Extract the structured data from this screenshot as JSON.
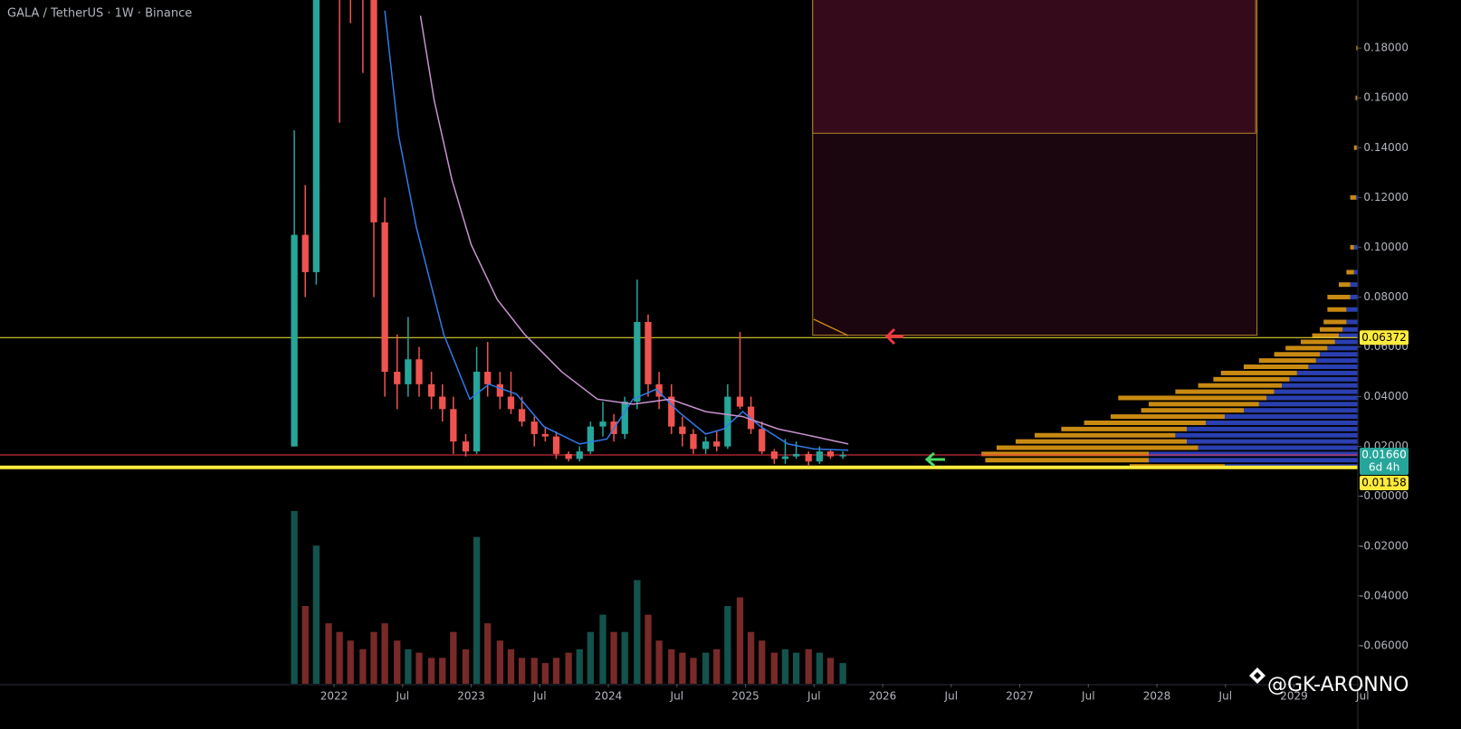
{
  "chart_data": {
    "type": "candlestick",
    "title": "GALA / TetherUS · 1W · Binance",
    "watermark": "@GK-ARONNO",
    "xlim": [
      2019.564,
      2029.465
    ],
    "ylim": [
      -0.0753,
      0.1993
    ],
    "xticks": [
      2022,
      {
        "value": 2022.5,
        "label": "Jul"
      },
      2023,
      {
        "value": 2023.5,
        "label": "Jul"
      },
      2024,
      {
        "value": 2024.5,
        "label": "Jul"
      },
      2025,
      {
        "value": 2025.5,
        "label": "Jul"
      },
      2026,
      {
        "value": 2026.5,
        "label": "Jul"
      },
      2027,
      {
        "value": 2027.5,
        "label": "Jul"
      },
      2028,
      {
        "value": 2028.5,
        "label": "Jul"
      },
      2029,
      {
        "value": 2029.5,
        "label": "Jul"
      }
    ],
    "yticks": [
      {
        "value": 0.18,
        "label": "0.18000"
      },
      {
        "value": 0.16,
        "label": "0.16000"
      },
      {
        "value": 0.14,
        "label": "0.14000"
      },
      {
        "value": 0.12,
        "label": "0.12000"
      },
      {
        "value": 0.1,
        "label": "0.10000"
      },
      {
        "value": 0.08,
        "label": "0.08000"
      },
      {
        "value": 0.06,
        "label": "0.06000"
      },
      {
        "value": 0.04,
        "label": "0.04000"
      },
      {
        "value": 0.02,
        "label": "0.02000"
      },
      {
        "value": 0,
        "label": "-0.00000"
      },
      {
        "value": -0.02,
        "label": "-0.02000"
      },
      {
        "value": -0.04,
        "label": "-0.04000"
      },
      {
        "value": -0.06,
        "label": "-0.06000"
      }
    ],
    "up_color": "#26a69a",
    "down_color": "#ef5350",
    "x": [
      2021.71,
      2021.79,
      2021.87,
      2021.96,
      2022.04,
      2022.12,
      2022.21,
      2022.29,
      2022.37,
      2022.46,
      2022.54,
      2022.62,
      2022.71,
      2022.79,
      2022.87,
      2022.96,
      2023.04,
      2023.12,
      2023.21,
      2023.29,
      2023.37,
      2023.46,
      2023.54,
      2023.62,
      2023.71,
      2023.79,
      2023.87,
      2023.96,
      2024.04,
      2024.12,
      2024.21,
      2024.29,
      2024.37,
      2024.46,
      2024.54,
      2024.62,
      2024.71,
      2024.79,
      2024.87,
      2024.96,
      2025.04,
      2025.12,
      2025.21,
      2025.29,
      2025.37,
      2025.46,
      2025.54,
      2025.62,
      2025.71
    ],
    "open": [
      0.02,
      0.105,
      0.09,
      0.45,
      0.4,
      0.24,
      0.22,
      0.2,
      0.11,
      0.05,
      0.045,
      0.055,
      0.045,
      0.04,
      0.035,
      0.022,
      0.018,
      0.05,
      0.045,
      0.04,
      0.035,
      0.03,
      0.025,
      0.024,
      0.017,
      0.015,
      0.018,
      0.028,
      0.03,
      0.025,
      0.038,
      0.07,
      0.045,
      0.04,
      0.028,
      0.025,
      0.019,
      0.022,
      0.02,
      0.04,
      0.036,
      0.027,
      0.018,
      0.015,
      0.016,
      0.017,
      0.014,
      0.018,
      0.016
    ],
    "high": [
      0.147,
      0.125,
      0.84,
      0.6,
      0.45,
      0.3,
      0.25,
      0.22,
      0.12,
      0.065,
      0.072,
      0.06,
      0.05,
      0.045,
      0.04,
      0.025,
      0.06,
      0.062,
      0.05,
      0.05,
      0.04,
      0.032,
      0.028,
      0.026,
      0.018,
      0.02,
      0.03,
      0.038,
      0.033,
      0.04,
      0.087,
      0.073,
      0.05,
      0.045,
      0.032,
      0.027,
      0.024,
      0.026,
      0.045,
      0.066,
      0.04,
      0.03,
      0.019,
      0.023,
      0.022,
      0.018,
      0.02,
      0.019,
      0.018
    ],
    "low": [
      0.02,
      0.08,
      0.085,
      0.3,
      0.15,
      0.19,
      0.17,
      0.08,
      0.04,
      0.035,
      0.04,
      0.04,
      0.035,
      0.03,
      0.017,
      0.016,
      0.017,
      0.04,
      0.035,
      0.033,
      0.028,
      0.02,
      0.022,
      0.015,
      0.014,
      0.014,
      0.017,
      0.024,
      0.022,
      0.023,
      0.035,
      0.04,
      0.035,
      0.025,
      0.02,
      0.017,
      0.017,
      0.018,
      0.019,
      0.035,
      0.025,
      0.017,
      0.013,
      0.013,
      0.015,
      0.012,
      0.013,
      0.015,
      0.015
    ],
    "close": [
      0.105,
      0.09,
      0.45,
      0.4,
      0.24,
      0.22,
      0.2,
      0.11,
      0.05,
      0.045,
      0.055,
      0.045,
      0.04,
      0.035,
      0.022,
      0.018,
      0.05,
      0.045,
      0.04,
      0.035,
      0.03,
      0.025,
      0.024,
      0.017,
      0.015,
      0.018,
      0.028,
      0.03,
      0.025,
      0.038,
      0.07,
      0.045,
      0.04,
      0.028,
      0.025,
      0.019,
      0.022,
      0.02,
      0.04,
      0.036,
      0.027,
      0.018,
      0.015,
      0.016,
      0.017,
      0.014,
      0.018,
      0.016,
      0.0166
    ],
    "volume": [
      100,
      45,
      80,
      35,
      30,
      25,
      20,
      30,
      35,
      25,
      20,
      18,
      15,
      15,
      30,
      20,
      85,
      35,
      25,
      20,
      15,
      15,
      12,
      15,
      18,
      20,
      30,
      40,
      30,
      30,
      60,
      40,
      25,
      20,
      18,
      15,
      18,
      20,
      45,
      50,
      30,
      25,
      18,
      20,
      18,
      20,
      18,
      15,
      12
    ],
    "volume_lim": [
      0,
      100
    ],
    "lines": [
      {
        "color": "#2f7bea",
        "x": [
          2022.37,
          2022.47,
          2022.6,
          2022.8,
          2022.99,
          2023.13,
          2023.33,
          2023.53,
          2023.79,
          2023.99,
          2024.18,
          2024.35,
          2024.51,
          2024.71,
          2024.84,
          2024.98,
          2025.11,
          2025.31,
          2025.5,
          2025.75
        ],
        "values": [
          0.195,
          0.145,
          0.108,
          0.065,
          0.039,
          0.045,
          0.041,
          0.028,
          0.021,
          0.023,
          0.039,
          0.043,
          0.034,
          0.025,
          0.027,
          0.034,
          0.028,
          0.021,
          0.019,
          0.0185
        ]
      },
      {
        "color": "#c792cf",
        "x": [
          2022.63,
          2022.73,
          2022.86,
          2023.0,
          2023.19,
          2023.39,
          2023.66,
          2023.92,
          2024.18,
          2024.45,
          2024.71,
          2024.98,
          2025.24,
          2025.5,
          2025.75
        ],
        "values": [
          0.193,
          0.159,
          0.127,
          0.101,
          0.079,
          0.065,
          0.05,
          0.039,
          0.037,
          0.039,
          0.034,
          0.032,
          0.027,
          0.024,
          0.021
        ]
      }
    ],
    "levels": [
      {
        "value": 0.06372,
        "label": "0.06372",
        "color": "#ffeb3b"
      },
      {
        "value": 0.0166,
        "label": "0.01660",
        "color": "#f23645",
        "countdown": "6d 4h"
      },
      {
        "value": 0.01158,
        "label": "0.01158",
        "color": "#ffeb3b"
      }
    ],
    "zones": [
      {
        "x": [
          2025.49,
          2028.73
        ],
        "y": [
          0.0647,
          0.2
        ],
        "color": "#1b050e",
        "border": "#b8842a"
      },
      {
        "x": [
          2025.49,
          2028.72
        ],
        "y": [
          0.1458,
          0.2
        ],
        "color": "#350a1a",
        "border": "#b8842a"
      }
    ],
    "volume_profile": {
      "prices": [
        0.012,
        0.0145,
        0.017,
        0.0195,
        0.022,
        0.0245,
        0.027,
        0.0295,
        0.032,
        0.0345,
        0.037,
        0.0395,
        0.042,
        0.0445,
        0.047,
        0.0495,
        0.052,
        0.0545,
        0.057,
        0.0595,
        0.062,
        0.0645,
        0.067,
        0.07,
        0.075,
        0.08,
        0.085,
        0.09,
        0.1,
        0.12,
        0.14,
        0.16,
        0.18
      ],
      "blue": [
        35,
        55,
        55,
        42,
        45,
        48,
        45,
        40,
        35,
        30,
        26,
        24,
        22,
        20,
        18,
        16,
        13,
        11,
        10,
        8,
        6,
        5,
        4,
        3,
        3,
        2,
        2,
        1,
        1,
        0.5,
        0.3,
        0.2,
        0.1
      ],
      "orange": [
        25,
        43,
        44,
        53,
        45,
        37,
        33,
        32,
        30,
        27,
        29,
        39,
        26,
        22,
        20,
        20,
        17,
        15,
        12,
        11,
        9,
        7,
        6,
        6,
        5,
        6,
        3,
        2,
        1,
        1.5,
        0.7,
        0.4,
        0.3
      ],
      "lim": [
        0,
        100
      ],
      "blue_color": "#2a3fb0",
      "orange_color": "#c98a12"
    }
  }
}
